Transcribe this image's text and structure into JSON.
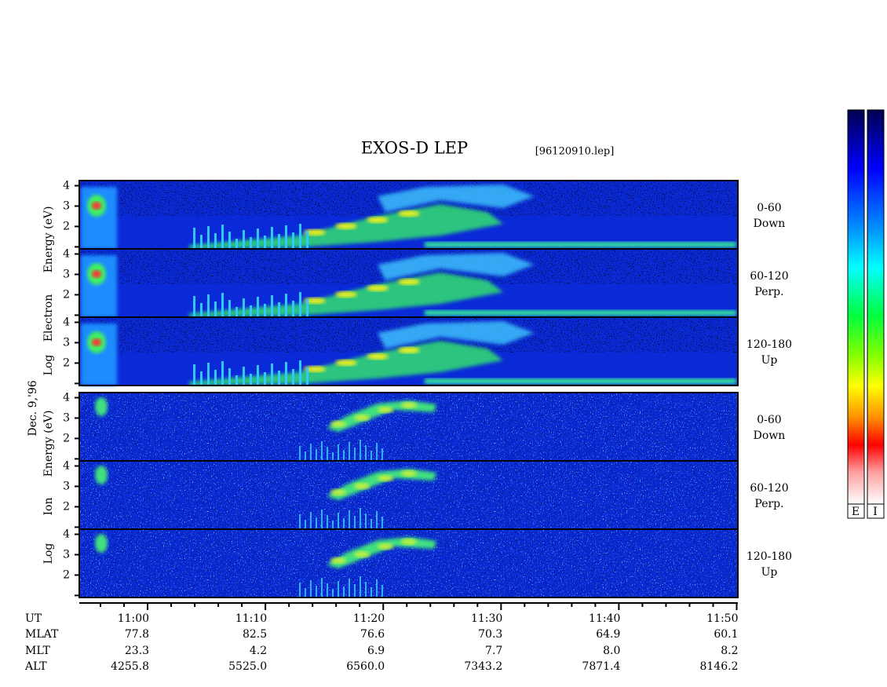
{
  "title": "EXOS-D LEP",
  "file": "[96120910.lep]",
  "date": "Dec. 9,'96",
  "electron_axis": {
    "words": [
      "Log",
      "Electron",
      "Energy (eV)"
    ]
  },
  "ion_axis": {
    "words": [
      "Log",
      "Ion",
      "Energy (eV)"
    ]
  },
  "panels": [
    {
      "species": "electron",
      "pitch": "0-60",
      "direction": "Down"
    },
    {
      "species": "electron",
      "pitch": "60-120",
      "direction": "Perp."
    },
    {
      "species": "electron",
      "pitch": "120-180",
      "direction": "Up"
    },
    {
      "species": "ion",
      "pitch": "0-60",
      "direction": "Down"
    },
    {
      "species": "ion",
      "pitch": "60-120",
      "direction": "Perp."
    },
    {
      "species": "ion",
      "pitch": "120-180",
      "direction": "Up"
    }
  ],
  "ylim": [
    0.9,
    4.25
  ],
  "yticks": [
    {
      "value": 1,
      "label": null
    },
    2,
    3,
    4
  ],
  "xlim": [
    54.2,
    110.1
  ],
  "xticks": [
    {
      "value": 60,
      "label": "11:00"
    },
    {
      "value": 70,
      "label": "11:10"
    },
    {
      "value": 80,
      "label": "11:20"
    },
    {
      "value": 90,
      "label": "11:30"
    },
    {
      "value": 100,
      "label": "11:40"
    },
    {
      "value": 110,
      "label": "11:50"
    }
  ],
  "xminorticks": [
    56,
    58,
    62,
    64,
    66,
    68,
    72,
    74,
    76,
    78,
    82,
    84,
    86,
    88,
    92,
    94,
    96,
    98,
    102,
    104,
    106,
    108
  ],
  "ephemeris": {
    "rows": [
      {
        "label": "UT"
      },
      {
        "label": "MLAT",
        "values": [
          "77.8",
          "82.5",
          "76.6",
          "70.3",
          "64.9",
          "60.1"
        ]
      },
      {
        "label": "MLT",
        "values": [
          "23.3",
          "4.2",
          "6.9",
          "7.7",
          "8.0",
          "8.2"
        ]
      },
      {
        "label": "ALT",
        "values": [
          "4255.8",
          "5525.0",
          "6560.0",
          "7343.2",
          "7871.4",
          "8146.2"
        ]
      }
    ]
  },
  "colorbars": [
    "E",
    "I"
  ]
}
